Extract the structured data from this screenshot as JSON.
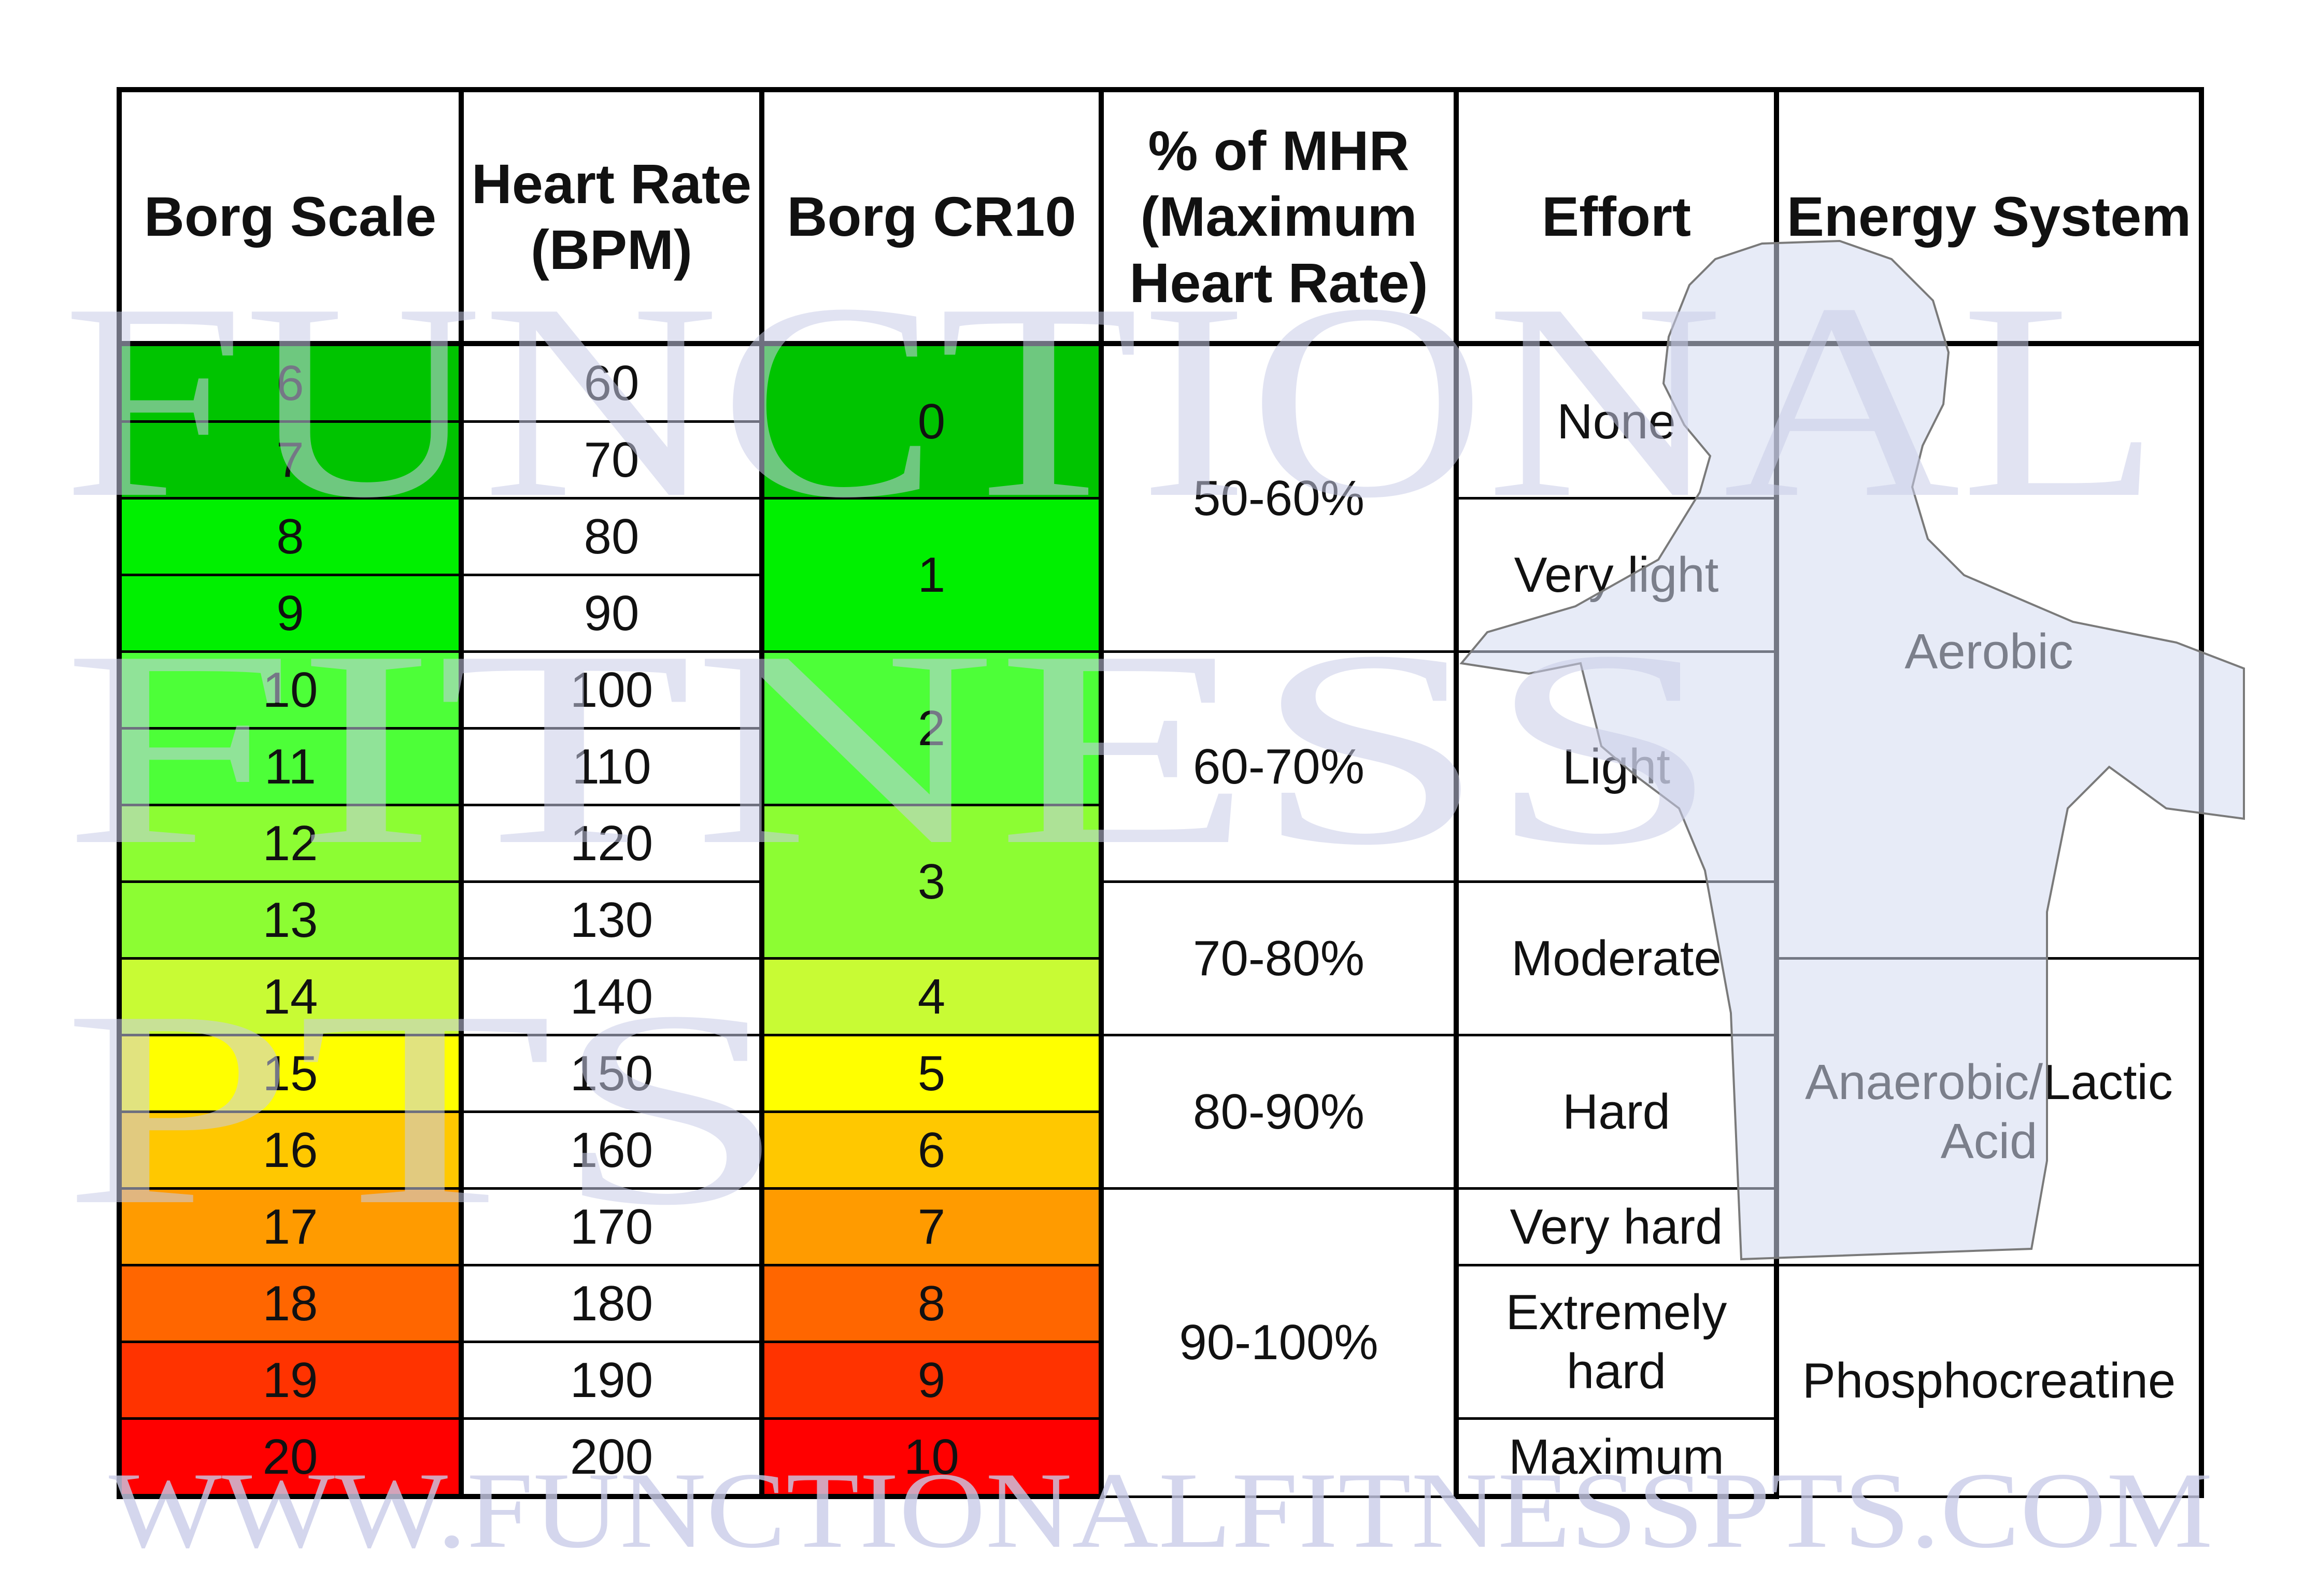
{
  "watermark": {
    "big_words": [
      "Functional",
      "Fitness",
      "PTs"
    ],
    "footer": "WWW.FUNCTIONALFITNESSPTS.COM",
    "color": "#c9cce8"
  },
  "headers": {
    "borg_scale": "Borg Scale",
    "heart_rate_line1": "Heart Rate",
    "heart_rate_line2": "(BPM)",
    "borg_cr10": "Borg CR10",
    "mhr_line1": "% of MHR",
    "mhr_line2": "(Maximum",
    "mhr_line3": "Heart Rate)",
    "effort": "Effort",
    "energy_system": "Energy System"
  },
  "borg_scale": [
    "6",
    "7",
    "8",
    "9",
    "10",
    "11",
    "12",
    "13",
    "14",
    "15",
    "16",
    "17",
    "18",
    "19",
    "20"
  ],
  "heart_rate": [
    "60",
    "70",
    "80",
    "90",
    "100",
    "110",
    "120",
    "130",
    "140",
    "150",
    "160",
    "170",
    "180",
    "190",
    "200"
  ],
  "borg_scale_colors": [
    "#00c400",
    "#00c400",
    "#00f000",
    "#00f000",
    "#4dff38",
    "#4dff38",
    "#8cfd33",
    "#8cfd33",
    "#c8fb34",
    "#ffff00",
    "#ffc800",
    "#ff9b00",
    "#ff6600",
    "#ff3300",
    "#ff0000"
  ],
  "borg_cr10": [
    {
      "label": "0",
      "span": 2,
      "color": "#00c400"
    },
    {
      "label": "1",
      "span": 2,
      "color": "#00f000"
    },
    {
      "label": "2",
      "span": 2,
      "color": "#4dff38"
    },
    {
      "label": "3",
      "span": 2,
      "color": "#8cfd33"
    },
    {
      "label": "4",
      "span": 1,
      "color": "#c8fb34"
    },
    {
      "label": "5",
      "span": 1,
      "color": "#ffff00"
    },
    {
      "label": "6",
      "span": 1,
      "color": "#ffc800"
    },
    {
      "label": "7",
      "span": 1,
      "color": "#ff9b00"
    },
    {
      "label": "8",
      "span": 1,
      "color": "#ff6600"
    },
    {
      "label": "9",
      "span": 1,
      "color": "#ff3300"
    },
    {
      "label": "10",
      "span": 1,
      "color": "#ff0000"
    }
  ],
  "mhr": [
    {
      "label": "50-60%",
      "span": 4
    },
    {
      "label": "60-70%",
      "span": 3
    },
    {
      "label": "70-80%",
      "span": 2
    },
    {
      "label": "80-90%",
      "span": 2
    },
    {
      "label": "90-100%",
      "span": 4
    }
  ],
  "effort": [
    {
      "lines": [
        "None"
      ],
      "span": 2
    },
    {
      "lines": [
        "Very light"
      ],
      "span": 2
    },
    {
      "lines": [
        "Light"
      ],
      "span": 3
    },
    {
      "lines": [
        "Moderate"
      ],
      "span": 2
    },
    {
      "lines": [
        "Hard"
      ],
      "span": 2
    },
    {
      "lines": [
        "Very hard"
      ],
      "span": 1
    },
    {
      "lines": [
        "Extremely",
        "hard"
      ],
      "span": 2
    },
    {
      "lines": [
        "Maximum"
      ],
      "span": 1
    }
  ],
  "energy_system": [
    {
      "lines": [
        "Aerobic"
      ],
      "span": 8
    },
    {
      "lines": [
        "Anaerobic/Lactic",
        "Acid"
      ],
      "span": 4
    },
    {
      "lines": [
        "Phosphocreatine"
      ],
      "span": 3
    }
  ]
}
